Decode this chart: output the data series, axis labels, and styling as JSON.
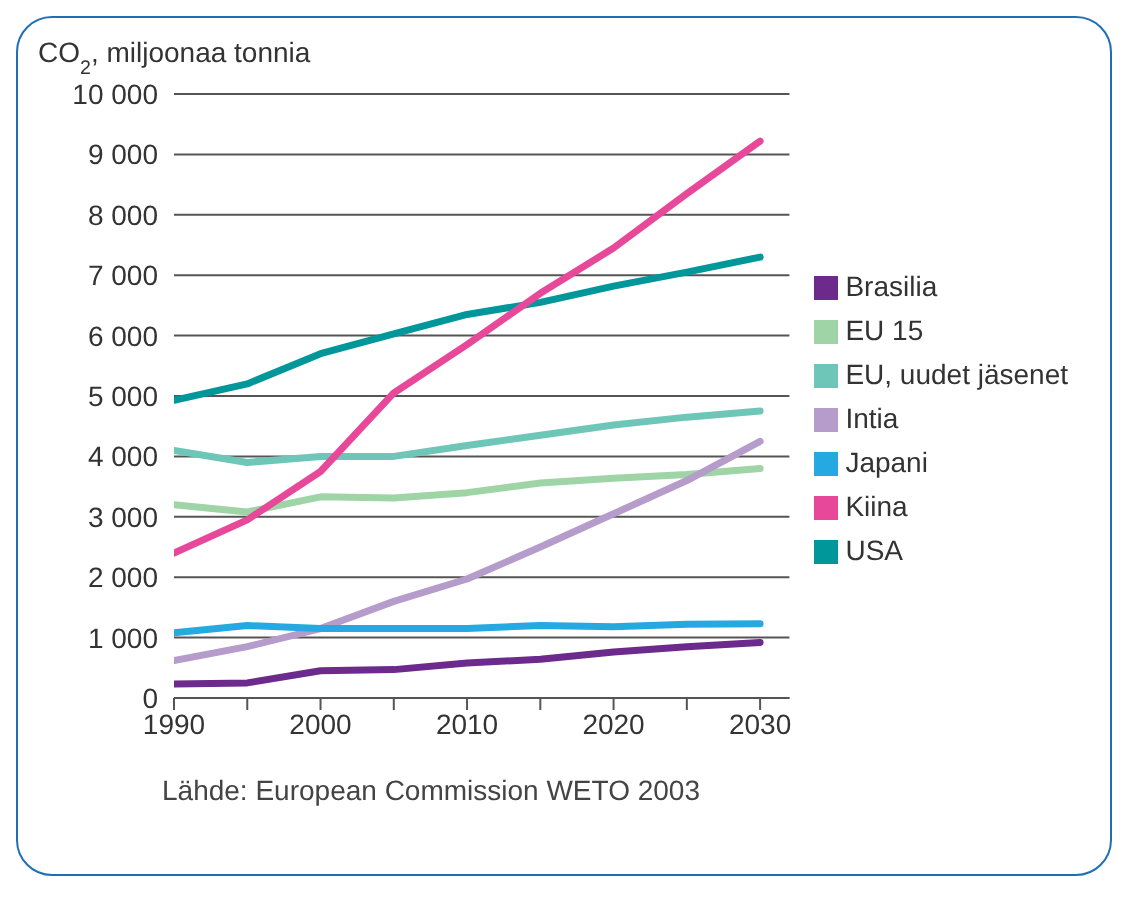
{
  "chart_data": {
    "type": "line",
    "ylabel": "CO$_{2}$, miljoonaa tonnia",
    "annotations": [
      "Lähde: European Commission WETO 2003"
    ],
    "x": [
      1990,
      1995,
      2000,
      2005,
      2010,
      2015,
      2020,
      2025,
      2030
    ],
    "xlim": [
      1990,
      2032
    ],
    "xticks": [
      1990,
      {
        "value": 1995,
        "label": null
      },
      2000,
      {
        "value": 2005,
        "label": null
      },
      2010,
      {
        "value": 2015,
        "label": null
      },
      2020,
      {
        "value": 2025,
        "label": null
      },
      2030
    ],
    "ylim": [
      0,
      10000
    ],
    "yticks": [
      0,
      {
        "value": 1000,
        "label": "1 000"
      },
      {
        "value": 2000,
        "label": "2 000"
      },
      {
        "value": 3000,
        "label": "3 000"
      },
      {
        "value": 4000,
        "label": "4 000"
      },
      {
        "value": 5000,
        "label": "5 000"
      },
      {
        "value": 6000,
        "label": "6 000"
      },
      {
        "value": 7000,
        "label": "7 000"
      },
      {
        "value": 8000,
        "label": "8 000"
      },
      {
        "value": 9000,
        "label": "9 000"
      },
      {
        "value": 10000,
        "label": "10 000"
      }
    ],
    "grid": "y",
    "legend": "right",
    "marker": "none",
    "line_style": "solid",
    "series": [
      {
        "name": "EU 15",
        "color": "#9fd5a6",
        "values": [
          3200,
          3080,
          3330,
          3310,
          3400,
          3560,
          3640,
          3700,
          3800
        ]
      },
      {
        "name": "EU, uudet jäsenet",
        "color": "#6ec6b9",
        "values": [
          4100,
          3900,
          4000,
          4000,
          4180,
          4350,
          4520,
          4650,
          4750
        ]
      },
      {
        "name": "USA",
        "color": "#00979b",
        "values": [
          4930,
          5200,
          5700,
          6030,
          6350,
          6550,
          6820,
          7050,
          7300
        ]
      },
      {
        "name": "Brasilia",
        "color": "#6b2a8c",
        "values": [
          230,
          250,
          450,
          470,
          580,
          640,
          760,
          850,
          920
        ]
      },
      {
        "name": "Intia",
        "color": "#b59ccb",
        "values": [
          620,
          850,
          1150,
          1600,
          1970,
          2500,
          3050,
          3600,
          4250
        ]
      },
      {
        "name": "Kiina",
        "color": "#e8489a",
        "values": [
          2400,
          2950,
          3750,
          5050,
          5850,
          6700,
          7450,
          8350,
          9220
        ]
      },
      {
        "name": "Japani",
        "color": "#25a9e0",
        "values": [
          1080,
          1200,
          1150,
          1150,
          1150,
          1200,
          1180,
          1220,
          1230
        ]
      }
    ]
  }
}
